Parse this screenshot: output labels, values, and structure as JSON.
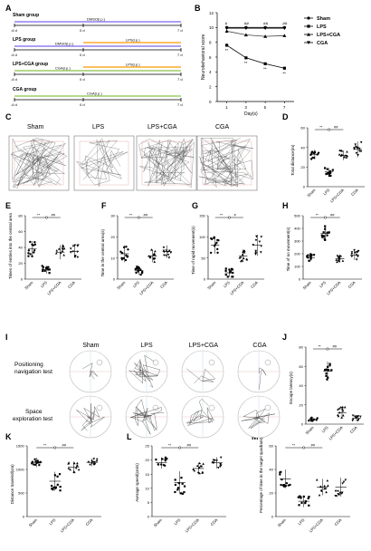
{
  "panel_letters": [
    "A",
    "B",
    "C",
    "D",
    "E",
    "F",
    "G",
    "H",
    "I",
    "J",
    "K",
    "L",
    "M"
  ],
  "groups": [
    "Sham",
    "LPS",
    "LPS+CGA",
    "CGA"
  ],
  "panelA": {
    "rows": [
      {
        "label": "Sham group",
        "bars": [
          {
            "text": "DMSO(i.p.)"
          }
        ],
        "ticks": [
          "-6 d",
          "0 d",
          "7 d"
        ]
      },
      {
        "label": "LPS group",
        "bars": [
          {
            "text": "DMSO(i.p.)"
          },
          {
            "text": "LPS(i.p.)"
          }
        ],
        "ticks": [
          "-6 d",
          "0 d",
          "7 d"
        ]
      },
      {
        "label": "LPS+CGA group",
        "bars": [
          {
            "text": "CGA(i.p.)"
          },
          {
            "text": "LPS(i.p.)"
          }
        ],
        "ticks": [
          "-6 d",
          "0 d",
          "7 d"
        ]
      },
      {
        "label": "CGA group",
        "bars": [
          {
            "text": "CGA(i.p.)"
          }
        ],
        "ticks": [
          "-6 d",
          "0 d",
          "7 d"
        ]
      }
    ]
  },
  "panelC": {
    "labels": [
      "Sham",
      "LPS",
      "LPS+CGA",
      "CGA"
    ]
  },
  "panelI": {
    "cols": [
      "Sham",
      "LPS",
      "LPS+CGA",
      "CGA"
    ],
    "rows": [
      "Positioning navigation test",
      "Space exploration test"
    ]
  },
  "colors": {
    "sham": "#000000",
    "lps": "#000000",
    "cga_line": "#555555",
    "bar_color": "#6a5acd",
    "track": "#888888"
  },
  "chart_data": [
    {
      "panel": "B",
      "type": "line",
      "x": [
        1,
        3,
        5,
        7
      ],
      "xlabel": "Day(s)",
      "ylabel": "Neurobehavioral score",
      "ylim": [
        0,
        12
      ],
      "yticks": [
        0,
        2,
        4,
        6,
        8,
        10,
        12
      ],
      "legend": [
        "Sham",
        "LPS",
        "LPS+CGA",
        "CGA"
      ],
      "series": [
        {
          "name": "Sham",
          "values": [
            10,
            10,
            10,
            10
          ]
        },
        {
          "name": "LPS",
          "values": [
            7.6,
            5.9,
            5.1,
            4.5
          ]
        },
        {
          "name": "LPS+CGA",
          "values": [
            9.5,
            9.0,
            8.8,
            8.9
          ]
        },
        {
          "name": "CGA",
          "values": [
            10,
            10,
            10,
            10
          ]
        }
      ],
      "annotations": [
        "#",
        "##",
        "##",
        "##",
        "**",
        "**",
        "**",
        "**"
      ]
    },
    {
      "panel": "D",
      "type": "scatter",
      "categories": [
        "Sham",
        "LPS",
        "LPS+CGA",
        "CGA"
      ],
      "ylabel": "Total distance(m)",
      "ylim": [
        0,
        60
      ],
      "yticks": [
        0,
        20,
        40,
        60
      ],
      "means": [
        33,
        15,
        32,
        38
      ],
      "sd": [
        5,
        4,
        5,
        8
      ],
      "sig": [
        "**",
        "##"
      ]
    },
    {
      "panel": "E",
      "type": "scatter",
      "categories": [
        "Sham",
        "LPS",
        "LPS+CGA",
        "CGA"
      ],
      "ylabel": "Times of entries into the central area",
      "ylim": [
        0,
        80
      ],
      "yticks": [
        0,
        20,
        40,
        60,
        80
      ],
      "means": [
        38,
        12,
        34,
        35
      ],
      "sd": [
        10,
        5,
        9,
        8
      ],
      "sig": [
        "**",
        "##"
      ]
    },
    {
      "panel": "F",
      "type": "scatter",
      "categories": [
        "Sham",
        "LPS",
        "LPS+CGA",
        "CGA"
      ],
      "ylabel": "Time in the central area(s)",
      "ylim": [
        0,
        30
      ],
      "yticks": [
        0,
        10,
        20,
        30
      ],
      "means": [
        12,
        4,
        11,
        13
      ],
      "sd": [
        4,
        2,
        3,
        3
      ],
      "sig": [
        "**",
        "##"
      ]
    },
    {
      "panel": "G",
      "type": "scatter",
      "categories": [
        "Sham",
        "LPS",
        "LPS+CGA",
        "CGA"
      ],
      "ylabel": "Time of rapid movement(s)",
      "ylim": [
        0,
        150
      ],
      "yticks": [
        0,
        50,
        100,
        150
      ],
      "means": [
        80,
        15,
        55,
        80
      ],
      "sd": [
        20,
        10,
        15,
        25
      ],
      "sig": [
        "**",
        "#"
      ]
    },
    {
      "panel": "H",
      "type": "scatter",
      "categories": [
        "Sham",
        "LPS",
        "LPS+CGA",
        "CGA"
      ],
      "ylabel": "Time of no movement(s)",
      "ylim": [
        0,
        500
      ],
      "yticks": [
        0,
        100,
        200,
        300,
        400,
        500
      ],
      "means": [
        170,
        360,
        160,
        190
      ],
      "sd": [
        30,
        60,
        30,
        40
      ],
      "sig": [
        "**",
        "##"
      ]
    },
    {
      "panel": "J",
      "type": "scatter",
      "categories": [
        "Sham",
        "LPS",
        "LPS+CGA",
        "CGA"
      ],
      "ylabel": "Escape latency(s)",
      "ylim": [
        0,
        80
      ],
      "yticks": [
        0,
        20,
        40,
        60,
        80
      ],
      "means": [
        5,
        55,
        12,
        6
      ],
      "sd": [
        2,
        10,
        6,
        3
      ],
      "sig": [
        "**",
        "##"
      ]
    },
    {
      "panel": "K",
      "type": "scatter",
      "categories": [
        "Sham",
        "LPS",
        "LPS+CGA",
        "CGA"
      ],
      "ylabel": "Distance traveled(cm)",
      "ylim": [
        0,
        1500
      ],
      "yticks": [
        0,
        500,
        1000,
        1500
      ],
      "means": [
        1150,
        750,
        1050,
        1150
      ],
      "sd": [
        100,
        200,
        120,
        80
      ],
      "sig": [
        "**",
        "##"
      ]
    },
    {
      "panel": "L",
      "type": "scatter",
      "categories": [
        "Sham",
        "LPS",
        "LPS+CGA",
        "CGA"
      ],
      "ylabel": "Average speed(cm/s)",
      "ylim": [
        0,
        25
      ],
      "yticks": [
        0,
        5,
        10,
        15,
        20,
        25
      ],
      "means": [
        19,
        12,
        17,
        19
      ],
      "sd": [
        2,
        4,
        2,
        2
      ],
      "sig": [
        "**",
        "##"
      ]
    },
    {
      "panel": "M",
      "type": "scatter",
      "categories": [
        "Sham",
        "LPS",
        "LPS+CGA",
        "CGA"
      ],
      "ylabel": "Percentage of time in the target quadrant(%)",
      "ylim": [
        0,
        60
      ],
      "yticks": [
        0,
        20,
        40,
        60
      ],
      "means": [
        32,
        13,
        25,
        25
      ],
      "sd": [
        8,
        5,
        7,
        8
      ],
      "sig": [
        "**",
        "##"
      ]
    }
  ]
}
